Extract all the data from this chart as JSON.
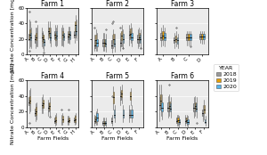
{
  "farms": [
    "Farm 1",
    "Farm 2",
    "Farm 3",
    "Farm 4",
    "Farm 5",
    "Farm 6"
  ],
  "farm1_fields": [
    "A",
    "B",
    "C",
    "D",
    "E",
    "F",
    "G",
    "H"
  ],
  "farm2_fields": [
    "A",
    "B",
    "C",
    "D",
    "E",
    "F"
  ],
  "farm3_fields": [
    "A",
    "B",
    "C",
    "D"
  ],
  "farm4_fields": [
    "A",
    "B",
    "C",
    "D",
    "E",
    "F",
    "G",
    "H"
  ],
  "farm5_fields": [
    "A",
    "B",
    "C",
    "D",
    "E",
    "F"
  ],
  "farm6_fields": [
    "A",
    "B",
    "C",
    "D",
    "E",
    "F"
  ],
  "years": [
    "2018",
    "2019",
    "2020"
  ],
  "year_colors": {
    "2018": "#999999",
    "2019": "#E69F00",
    "2020": "#56B4E9"
  },
  "ylim": [
    0,
    60
  ],
  "yticks": [
    0,
    20,
    40,
    60
  ],
  "ylabel": "Nitrate Concentration [mg/L]",
  "xlabel": "Farm Fields",
  "title_fontsize": 5.5,
  "label_fontsize": 4.5,
  "tick_fontsize": 4,
  "legend_fontsize": 4.5,
  "bg_color": "#EBEBEB",
  "farm1": {
    "2018": {
      "A": {
        "q1": 18,
        "med": 20,
        "q3": 27,
        "whislo": 8,
        "whishi": 45,
        "fliers": [
          55,
          5
        ]
      },
      "B": {
        "q1": 15,
        "med": 20,
        "q3": 25,
        "whislo": 8,
        "whishi": 35,
        "fliers": [
          42
        ]
      },
      "C": {
        "q1": 17,
        "med": 22,
        "q3": 28,
        "whislo": 10,
        "whishi": 35,
        "fliers": []
      },
      "D": {
        "q1": 25,
        "med": 30,
        "q3": 35,
        "whislo": 20,
        "whishi": 42,
        "fliers": []
      },
      "E": {
        "q1": 20,
        "med": 25,
        "q3": 30,
        "whislo": 12,
        "whishi": 38,
        "fliers": []
      },
      "F": {
        "q1": 20,
        "med": 25,
        "q3": 30,
        "whislo": 12,
        "whishi": 35,
        "fliers": []
      },
      "G": {
        "q1": 20,
        "med": 23,
        "q3": 27,
        "whislo": 15,
        "whishi": 30,
        "fliers": []
      },
      "H": {
        "q1": 22,
        "med": 25,
        "q3": 30,
        "whislo": 15,
        "whishi": 35,
        "fliers": []
      }
    },
    "2019": {
      "A": {
        "q1": 20,
        "med": 25,
        "q3": 32,
        "whislo": 10,
        "whishi": 42,
        "fliers": []
      },
      "B": {
        "q1": 18,
        "med": 22,
        "q3": 28,
        "whislo": 10,
        "whishi": 35,
        "fliers": []
      },
      "C": {
        "q1": 15,
        "med": 20,
        "q3": 25,
        "whislo": 8,
        "whishi": 30,
        "fliers": []
      },
      "D": {
        "q1": 22,
        "med": 28,
        "q3": 35,
        "whislo": 15,
        "whishi": 42,
        "fliers": []
      },
      "E": {
        "q1": 18,
        "med": 22,
        "q3": 28,
        "whislo": 10,
        "whishi": 35,
        "fliers": []
      },
      "F": {
        "q1": 20,
        "med": 25,
        "q3": 30,
        "whislo": 12,
        "whishi": 38,
        "fliers": []
      },
      "G": {
        "q1": 22,
        "med": 26,
        "q3": 30,
        "whislo": 15,
        "whishi": 36,
        "fliers": []
      },
      "H": {
        "q1": 30,
        "med": 38,
        "q3": 42,
        "whislo": 22,
        "whishi": 50,
        "fliers": []
      }
    },
    "2020": {
      "A": {
        "q1": 18,
        "med": 22,
        "q3": 28,
        "whislo": 8,
        "whishi": 35,
        "fliers": []
      },
      "B": {
        "q1": 20,
        "med": 24,
        "q3": 30,
        "whislo": 10,
        "whishi": 38,
        "fliers": []
      },
      "C": {
        "q1": 12,
        "med": 16,
        "q3": 20,
        "whislo": 5,
        "whishi": 25,
        "fliers": [
          2
        ]
      },
      "D": {
        "q1": 18,
        "med": 22,
        "q3": 28,
        "whislo": 10,
        "whishi": 35,
        "fliers": []
      },
      "E": {
        "q1": 20,
        "med": 24,
        "q3": 30,
        "whislo": 12,
        "whishi": 38,
        "fliers": []
      },
      "F": {
        "q1": 18,
        "med": 23,
        "q3": 28,
        "whislo": 10,
        "whishi": 35,
        "fliers": []
      },
      "G": {
        "q1": 20,
        "med": 25,
        "q3": 30,
        "whislo": 14,
        "whishi": 36,
        "fliers": []
      },
      "H": {
        "q1": 25,
        "med": 30,
        "q3": 38,
        "whislo": 18,
        "whishi": 45,
        "fliers": []
      }
    }
  },
  "farm2": {
    "2018": {
      "A": {
        "q1": 8,
        "med": 12,
        "q3": 18,
        "whislo": 5,
        "whishi": 25,
        "fliers": [
          35
        ]
      },
      "B": {
        "q1": 10,
        "med": 15,
        "q3": 20,
        "whislo": 5,
        "whishi": 28,
        "fliers": []
      },
      "C": {
        "q1": 8,
        "med": 12,
        "q3": 18,
        "whislo": 3,
        "whishi": 25,
        "fliers": [
          40
        ]
      },
      "D": {
        "q1": 10,
        "med": 15,
        "q3": 20,
        "whislo": 5,
        "whishi": 28,
        "fliers": [
          35
        ]
      },
      "E": {
        "q1": 20,
        "med": 25,
        "q3": 30,
        "whislo": 12,
        "whishi": 38,
        "fliers": []
      },
      "F": {
        "q1": 15,
        "med": 20,
        "q3": 25,
        "whislo": 8,
        "whishi": 32,
        "fliers": []
      }
    },
    "2019": {
      "A": {
        "q1": 12,
        "med": 18,
        "q3": 25,
        "whislo": 5,
        "whishi": 32,
        "fliers": []
      },
      "B": {
        "q1": 10,
        "med": 15,
        "q3": 20,
        "whislo": 5,
        "whishi": 28,
        "fliers": []
      },
      "C": {
        "q1": 15,
        "med": 20,
        "q3": 26,
        "whislo": 8,
        "whishi": 32,
        "fliers": [
          42
        ]
      },
      "D": {
        "q1": 18,
        "med": 24,
        "q3": 30,
        "whislo": 10,
        "whishi": 38,
        "fliers": []
      },
      "E": {
        "q1": 22,
        "med": 27,
        "q3": 33,
        "whislo": 15,
        "whishi": 40,
        "fliers": []
      },
      "F": {
        "q1": 18,
        "med": 22,
        "q3": 28,
        "whislo": 10,
        "whishi": 35,
        "fliers": []
      }
    },
    "2020": {
      "A": {
        "q1": 10,
        "med": 15,
        "q3": 20,
        "whislo": 5,
        "whishi": 28,
        "fliers": []
      },
      "B": {
        "q1": 10,
        "med": 14,
        "q3": 20,
        "whislo": 4,
        "whishi": 26,
        "fliers": [
          32
        ]
      },
      "C": {
        "q1": 10,
        "med": 14,
        "q3": 20,
        "whislo": 4,
        "whishi": 26,
        "fliers": []
      },
      "D": {
        "q1": 15,
        "med": 20,
        "q3": 26,
        "whislo": 8,
        "whishi": 32,
        "fliers": [
          8
        ]
      },
      "E": {
        "q1": 18,
        "med": 22,
        "q3": 28,
        "whislo": 10,
        "whishi": 35,
        "fliers": []
      },
      "F": {
        "q1": 15,
        "med": 20,
        "q3": 25,
        "whislo": 8,
        "whishi": 32,
        "fliers": [
          8
        ]
      }
    }
  },
  "farm3": {
    "2018": {
      "A": {
        "q1": 18,
        "med": 22,
        "q3": 28,
        "whislo": 10,
        "whishi": 35,
        "fliers": []
      },
      "B": {
        "q1": 15,
        "med": 18,
        "q3": 22,
        "whislo": 8,
        "whishi": 28,
        "fliers": []
      },
      "C": {
        "q1": 18,
        "med": 22,
        "q3": 26,
        "whislo": 12,
        "whishi": 30,
        "fliers": []
      },
      "D": {
        "q1": 20,
        "med": 23,
        "q3": 27,
        "whislo": 15,
        "whishi": 30,
        "fliers": []
      }
    },
    "2019": {
      "A": {
        "q1": 20,
        "med": 24,
        "q3": 30,
        "whislo": 12,
        "whishi": 38,
        "fliers": []
      },
      "B": {
        "q1": 16,
        "med": 20,
        "q3": 24,
        "whislo": 10,
        "whishi": 30,
        "fliers": [
          35
        ]
      },
      "C": {
        "q1": 18,
        "med": 22,
        "q3": 26,
        "whislo": 12,
        "whishi": 30,
        "fliers": []
      },
      "D": {
        "q1": 20,
        "med": 23,
        "q3": 27,
        "whislo": 14,
        "whishi": 30,
        "fliers": []
      }
    },
    "2020": {
      "A": {
        "q1": 18,
        "med": 22,
        "q3": 28,
        "whislo": 10,
        "whishi": 35,
        "fliers": []
      },
      "B": {
        "q1": 14,
        "med": 18,
        "q3": 22,
        "whislo": 8,
        "whishi": 26,
        "fliers": []
      },
      "C": {
        "q1": 18,
        "med": 22,
        "q3": 26,
        "whislo": 12,
        "whishi": 30,
        "fliers": [
          10
        ]
      },
      "D": {
        "q1": 20,
        "med": 23,
        "q3": 27,
        "whislo": 14,
        "whishi": 30,
        "fliers": []
      }
    }
  },
  "farm4": {
    "2018": {
      "A": {
        "q1": 28,
        "med": 32,
        "q3": 38,
        "whislo": 18,
        "whishi": 48,
        "fliers": [
          5
        ]
      },
      "B": {
        "q1": 14,
        "med": 18,
        "q3": 24,
        "whislo": 8,
        "whishi": 30,
        "fliers": []
      },
      "C": {
        "q1": 25,
        "med": 28,
        "q3": 32,
        "whislo": 18,
        "whishi": 38,
        "fliers": []
      },
      "D": {
        "q1": 20,
        "med": 25,
        "q3": 30,
        "whislo": 14,
        "whishi": 35,
        "fliers": []
      },
      "E": {
        "q1": 5,
        "med": 8,
        "q3": 12,
        "whislo": 2,
        "whishi": 16,
        "fliers": []
      },
      "F": {
        "q1": 6,
        "med": 9,
        "q3": 12,
        "whislo": 3,
        "whishi": 16,
        "fliers": [
          22
        ]
      },
      "G": {
        "q1": 6,
        "med": 8,
        "q3": 11,
        "whislo": 3,
        "whishi": 14,
        "fliers": []
      },
      "H": {
        "q1": 6,
        "med": 9,
        "q3": 12,
        "whislo": 3,
        "whishi": 16,
        "fliers": []
      }
    },
    "2019": {
      "A": {
        "q1": 30,
        "med": 34,
        "q3": 40,
        "whislo": 20,
        "whishi": 50,
        "fliers": []
      },
      "B": {
        "q1": 16,
        "med": 20,
        "q3": 26,
        "whislo": 10,
        "whishi": 32,
        "fliers": []
      },
      "C": {
        "q1": 25,
        "med": 30,
        "q3": 35,
        "whislo": 18,
        "whishi": 42,
        "fliers": []
      },
      "D": {
        "q1": 22,
        "med": 27,
        "q3": 32,
        "whislo": 15,
        "whishi": 38,
        "fliers": [
          13
        ]
      },
      "E": {
        "q1": 6,
        "med": 9,
        "q3": 13,
        "whislo": 3,
        "whishi": 18,
        "fliers": []
      },
      "F": {
        "q1": 7,
        "med": 10,
        "q3": 14,
        "whislo": 3,
        "whishi": 18,
        "fliers": []
      },
      "G": {
        "q1": 7,
        "med": 9,
        "q3": 12,
        "whislo": 3,
        "whishi": 15,
        "fliers": [
          22
        ]
      },
      "H": {
        "q1": 7,
        "med": 10,
        "q3": 14,
        "whislo": 4,
        "whishi": 18,
        "fliers": []
      }
    },
    "2020": {
      "A": {
        "q1": 0,
        "med": 0,
        "q3": 0,
        "whislo": 0,
        "whishi": 0,
        "fliers": []
      },
      "B": {
        "q1": 0,
        "med": 0,
        "q3": 0,
        "whislo": 0,
        "whishi": 0,
        "fliers": []
      },
      "C": {
        "q1": 0,
        "med": 0,
        "q3": 0,
        "whislo": 0,
        "whishi": 0,
        "fliers": []
      },
      "D": {
        "q1": 0,
        "med": 0,
        "q3": 0,
        "whislo": 0,
        "whishi": 0,
        "fliers": []
      },
      "E": {
        "q1": 0,
        "med": 0,
        "q3": 0,
        "whislo": 0,
        "whishi": 0,
        "fliers": []
      },
      "F": {
        "q1": 0,
        "med": 0,
        "q3": 0,
        "whislo": 0,
        "whishi": 0,
        "fliers": []
      },
      "G": {
        "q1": 0,
        "med": 0,
        "q3": 0,
        "whislo": 0,
        "whishi": 0,
        "fliers": []
      },
      "H": {
        "q1": 0,
        "med": 0,
        "q3": 0,
        "whislo": 0,
        "whishi": 0,
        "fliers": []
      }
    }
  },
  "farm5": {
    "2018": {
      "A": {
        "q1": 5,
        "med": 8,
        "q3": 12,
        "whislo": 2,
        "whishi": 16,
        "fliers": []
      },
      "B": {
        "q1": 3,
        "med": 5,
        "q3": 8,
        "whislo": 1,
        "whishi": 12,
        "fliers": []
      },
      "C": {
        "q1": 5,
        "med": 8,
        "q3": 12,
        "whislo": 2,
        "whishi": 16,
        "fliers": [
          40
        ]
      },
      "D": {
        "q1": 35,
        "med": 40,
        "q3": 45,
        "whislo": 28,
        "whishi": 52,
        "fliers": []
      },
      "E": {
        "q1": 12,
        "med": 16,
        "q3": 22,
        "whislo": 6,
        "whishi": 28,
        "fliers": []
      },
      "F": {
        "q1": 0,
        "med": 0,
        "q3": 0,
        "whislo": 0,
        "whishi": 0,
        "fliers": []
      }
    },
    "2019": {
      "A": {
        "q1": 7,
        "med": 10,
        "q3": 15,
        "whislo": 3,
        "whishi": 20,
        "fliers": []
      },
      "B": {
        "q1": 3,
        "med": 5,
        "q3": 8,
        "whislo": 1,
        "whishi": 12,
        "fliers": []
      },
      "C": {
        "q1": 30,
        "med": 38,
        "q3": 45,
        "whislo": 22,
        "whishi": 52,
        "fliers": []
      },
      "D": {
        "q1": 38,
        "med": 43,
        "q3": 48,
        "whislo": 30,
        "whishi": 55,
        "fliers": []
      },
      "E": {
        "q1": 35,
        "med": 40,
        "q3": 45,
        "whislo": 28,
        "whishi": 50,
        "fliers": []
      },
      "F": {
        "q1": 0,
        "med": 0,
        "q3": 0,
        "whislo": 0,
        "whishi": 0,
        "fliers": []
      }
    },
    "2020": {
      "A": {
        "q1": 8,
        "med": 12,
        "q3": 18,
        "whislo": 3,
        "whishi": 24,
        "fliers": []
      },
      "B": {
        "q1": 3,
        "med": 5,
        "q3": 8,
        "whislo": 1,
        "whishi": 12,
        "fliers": []
      },
      "C": {
        "q1": 12,
        "med": 16,
        "q3": 22,
        "whislo": 6,
        "whishi": 28,
        "fliers": []
      },
      "D": {
        "q1": 12,
        "med": 16,
        "q3": 22,
        "whislo": 6,
        "whishi": 28,
        "fliers": []
      },
      "E": {
        "q1": 12,
        "med": 16,
        "q3": 22,
        "whislo": 6,
        "whishi": 28,
        "fliers": []
      },
      "F": {
        "q1": 0,
        "med": 0,
        "q3": 0,
        "whislo": 0,
        "whishi": 0,
        "fliers": []
      }
    }
  },
  "farm6": {
    "2018": {
      "A": {
        "q1": 22,
        "med": 28,
        "q3": 38,
        "whislo": 8,
        "whishi": 55,
        "fliers": []
      },
      "B": {
        "q1": 20,
        "med": 25,
        "q3": 32,
        "whislo": 12,
        "whishi": 40,
        "fliers": []
      },
      "C": {
        "q1": 5,
        "med": 8,
        "q3": 12,
        "whislo": 2,
        "whishi": 16,
        "fliers": []
      },
      "D": {
        "q1": 5,
        "med": 8,
        "q3": 12,
        "whislo": 2,
        "whishi": 16,
        "fliers": []
      },
      "E": {
        "q1": 20,
        "med": 25,
        "q3": 30,
        "whislo": 12,
        "whishi": 38,
        "fliers": []
      },
      "F": {
        "q1": 15,
        "med": 18,
        "q3": 22,
        "whislo": 8,
        "whishi": 28,
        "fliers": []
      }
    },
    "2019": {
      "A": {
        "q1": 28,
        "med": 34,
        "q3": 42,
        "whislo": 15,
        "whishi": 55,
        "fliers": []
      },
      "B": {
        "q1": 22,
        "med": 27,
        "q3": 33,
        "whislo": 14,
        "whishi": 42,
        "fliers": [
          55
        ]
      },
      "C": {
        "q1": 6,
        "med": 9,
        "q3": 12,
        "whislo": 2,
        "whishi": 16,
        "fliers": []
      },
      "D": {
        "q1": 6,
        "med": 9,
        "q3": 12,
        "whislo": 2,
        "whishi": 16,
        "fliers": []
      },
      "E": {
        "q1": 22,
        "med": 27,
        "q3": 32,
        "whislo": 14,
        "whishi": 40,
        "fliers": []
      },
      "F": {
        "q1": 18,
        "med": 22,
        "q3": 28,
        "whislo": 10,
        "whishi": 35,
        "fliers": []
      }
    },
    "2020": {
      "A": {
        "q1": 20,
        "med": 25,
        "q3": 32,
        "whislo": 10,
        "whishi": 42,
        "fliers": []
      },
      "B": {
        "q1": 20,
        "med": 24,
        "q3": 30,
        "whislo": 12,
        "whishi": 38,
        "fliers": []
      },
      "C": {
        "q1": 4,
        "med": 7,
        "q3": 10,
        "whislo": 1,
        "whishi": 14,
        "fliers": []
      },
      "D": {
        "q1": 4,
        "med": 7,
        "q3": 10,
        "whislo": 1,
        "whishi": 14,
        "fliers": []
      },
      "E": {
        "q1": 20,
        "med": 24,
        "q3": 30,
        "whislo": 12,
        "whishi": 38,
        "fliers": [
          5
        ]
      },
      "F": {
        "q1": 5,
        "med": 7,
        "q3": 10,
        "whislo": 2,
        "whishi": 14,
        "fliers": []
      }
    }
  }
}
